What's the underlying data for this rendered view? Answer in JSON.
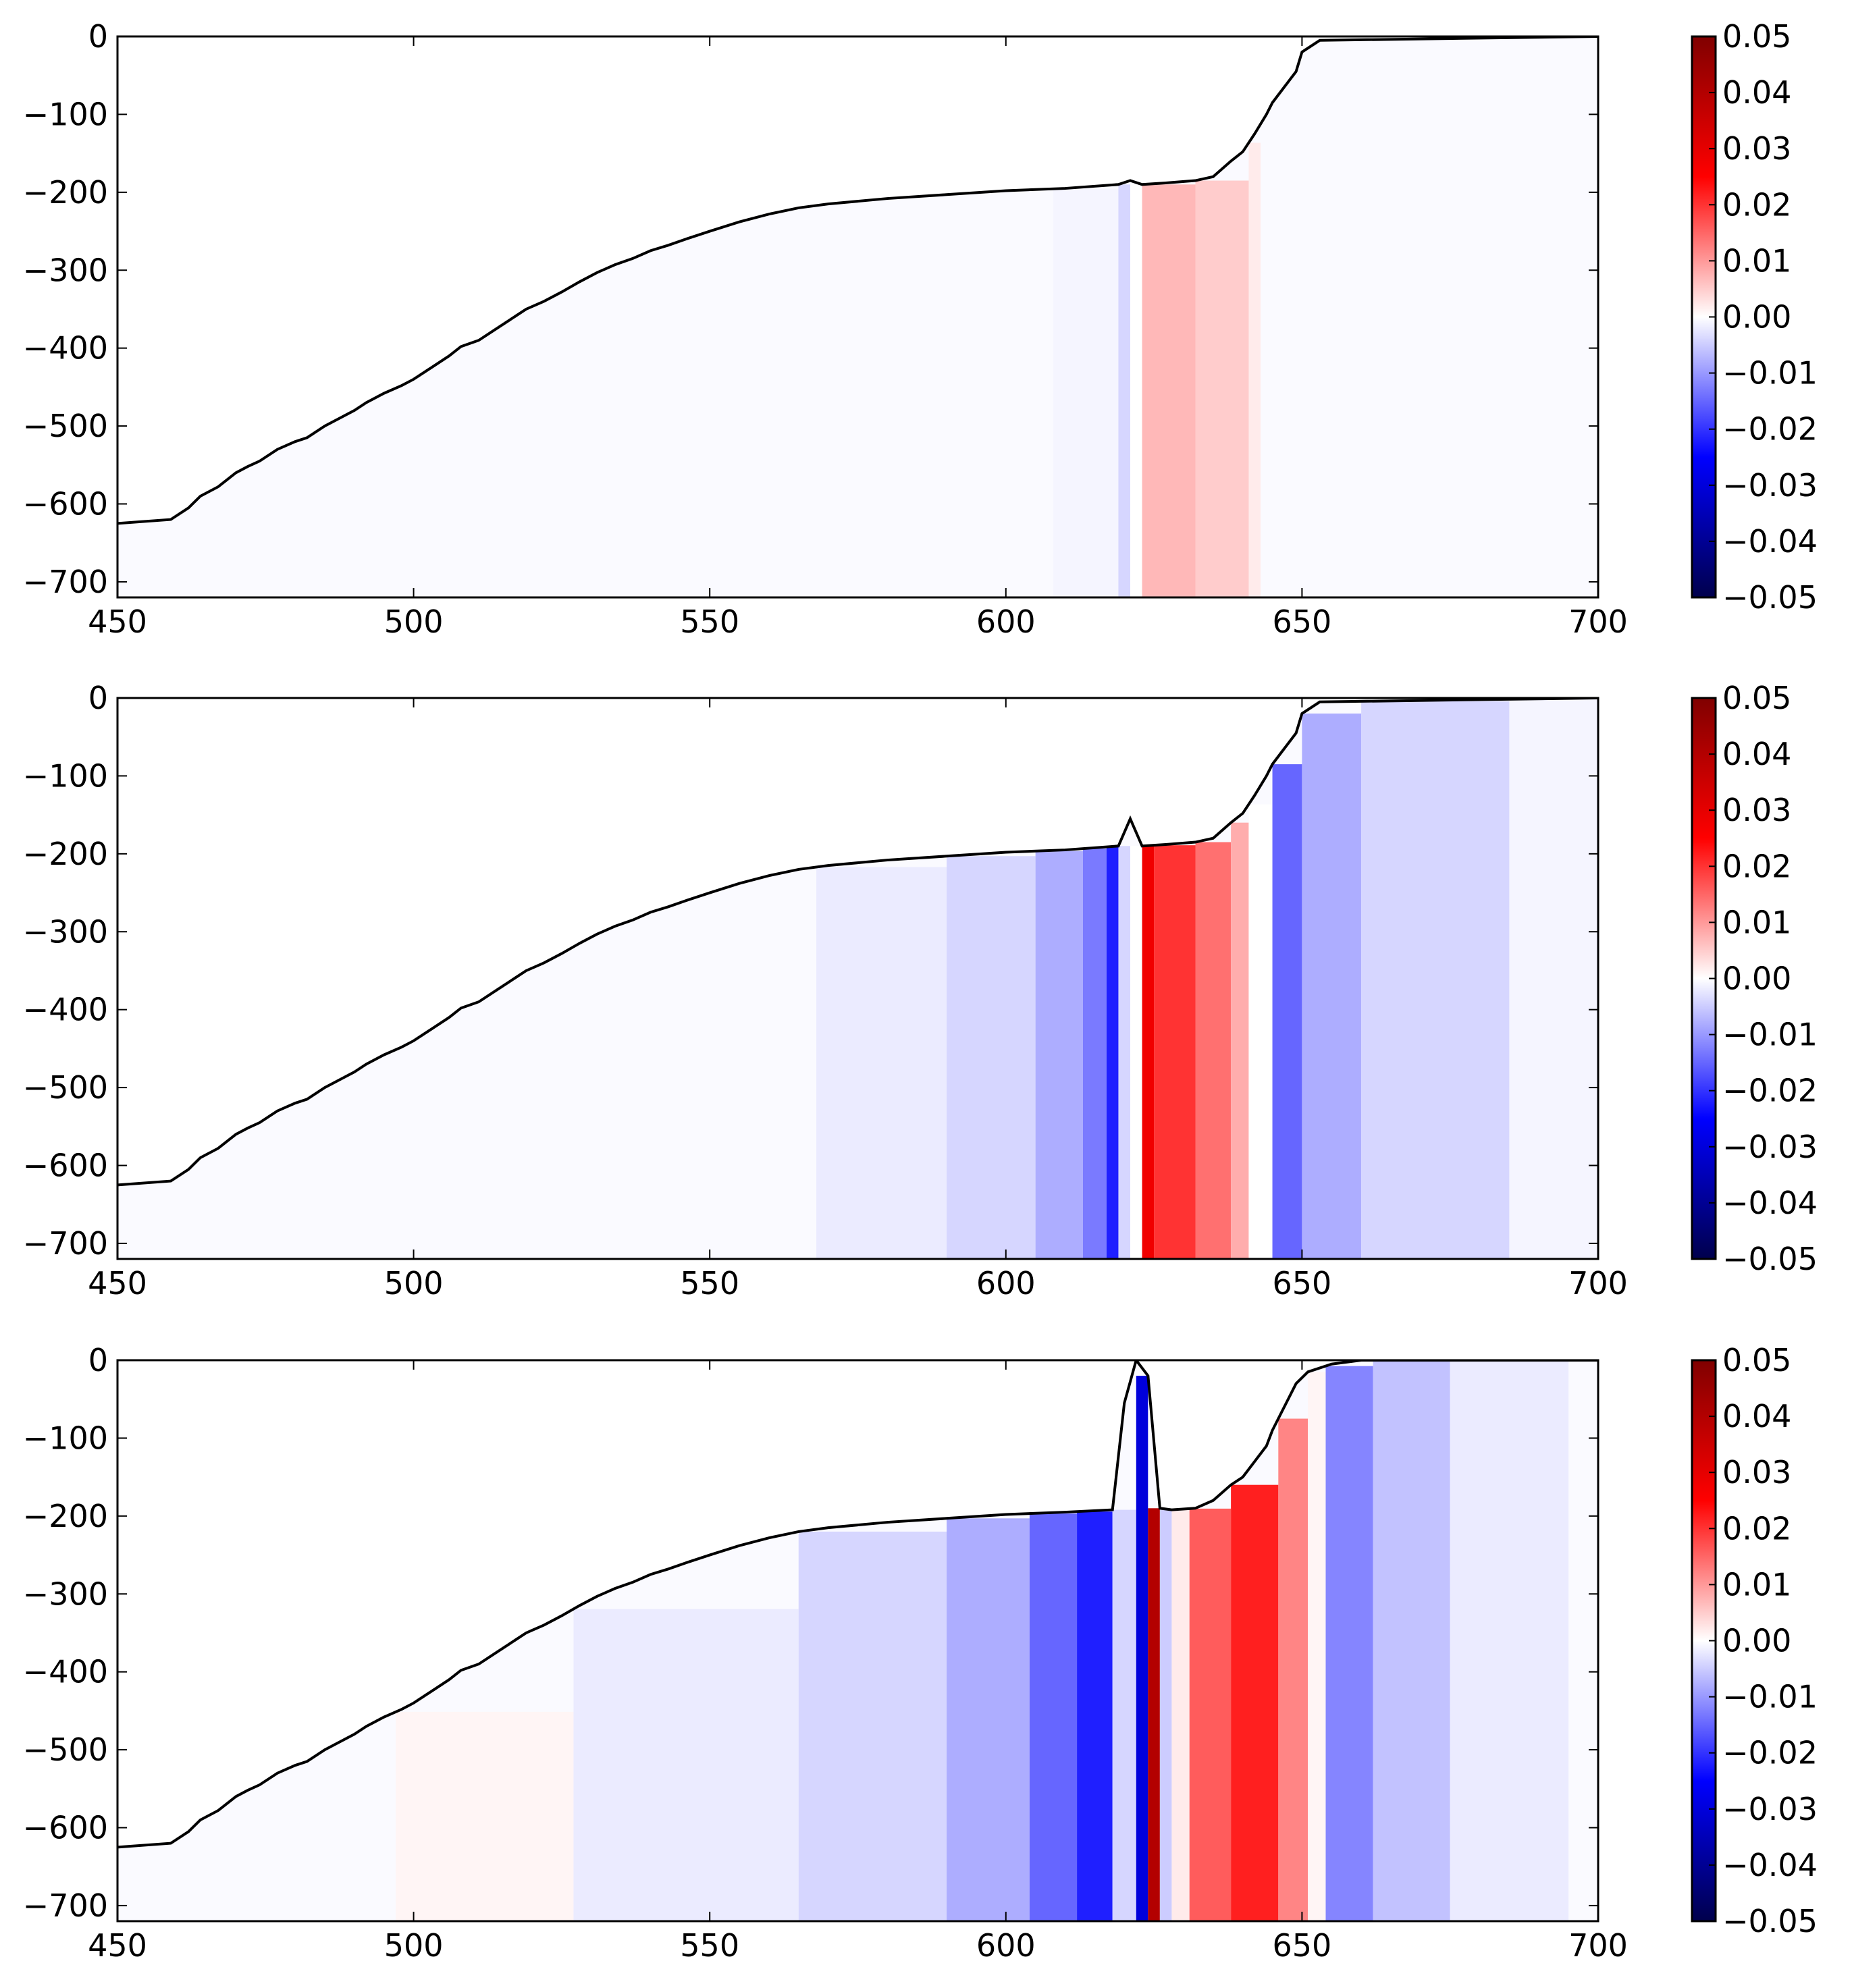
{
  "colormap": {
    "name": "seismic",
    "stops": [
      "#00004c",
      "#0000ff",
      "#ffffff",
      "#ff0000",
      "#800000"
    ]
  },
  "chart_data": [
    {
      "type": "heatmap",
      "xlim": [
        450,
        700
      ],
      "ylim": [
        -720,
        0
      ],
      "xticks": [
        450,
        500,
        550,
        600,
        650,
        700
      ],
      "yticks": [
        0,
        -100,
        -200,
        -300,
        -400,
        -500,
        -600,
        -700
      ],
      "xtick_labels": [
        "450",
        "500",
        "550",
        "600",
        "650",
        "700"
      ],
      "ytick_labels": [
        "0",
        "−100",
        "−200",
        "−300",
        "−400",
        "−500",
        "−600",
        "−700"
      ],
      "colorbar": {
        "range": [
          -0.05,
          0.05
        ],
        "ticks": [
          0.05,
          0.04,
          0.03,
          0.02,
          0.01,
          0.0,
          -0.01,
          -0.02,
          -0.03,
          -0.04,
          -0.05
        ],
        "tick_labels": [
          "0.05",
          "0.04",
          "0.03",
          "0.02",
          "0.01",
          "0.00",
          "−0.01",
          "−0.02",
          "−0.03",
          "−0.04",
          "−0.05"
        ]
      },
      "bathymetry": {
        "x": [
          450,
          459,
          462,
          464,
          467,
          470,
          472,
          474,
          477,
          480,
          482,
          485,
          488,
          490,
          492,
          495,
          498,
          500,
          503,
          506,
          508,
          511,
          514,
          516,
          519,
          522,
          525,
          528,
          531,
          534,
          537,
          540,
          543,
          546,
          550,
          555,
          560,
          565,
          570,
          580,
          590,
          600,
          610,
          619,
          621,
          623,
          627,
          632,
          635,
          638,
          640,
          642,
          644,
          645,
          647,
          649,
          650,
          653,
          700
        ],
        "y": [
          -625,
          -620,
          -605,
          -590,
          -578,
          -560,
          -552,
          -545,
          -530,
          -520,
          -515,
          -500,
          -488,
          -480,
          -470,
          -458,
          -448,
          -440,
          -425,
          -410,
          -398,
          -390,
          -375,
          -365,
          -350,
          -340,
          -328,
          -315,
          -303,
          -293,
          -285,
          -275,
          -268,
          -260,
          -250,
          -238,
          -228,
          -220,
          -215,
          -208,
          -203,
          -198,
          -195,
          -190,
          -185,
          -190,
          -188,
          -185,
          -180,
          -160,
          -148,
          -125,
          -100,
          -85,
          -65,
          -45,
          -20,
          -5,
          0
        ]
      },
      "field": [
        {
          "x0": 608,
          "x1": 619,
          "v": -0.001
        },
        {
          "x0": 619,
          "x1": 621,
          "v": -0.004
        },
        {
          "x0": 621,
          "x1": 623,
          "v": 0.0
        },
        {
          "x0": 623,
          "x1": 632,
          "v": 0.007
        },
        {
          "x0": 632,
          "x1": 641,
          "v": 0.005
        },
        {
          "x0": 641,
          "x1": 643,
          "v": 0.002
        }
      ]
    },
    {
      "type": "heatmap",
      "xlim": [
        450,
        700
      ],
      "ylim": [
        -720,
        0
      ],
      "xticks": [
        450,
        500,
        550,
        600,
        650,
        700
      ],
      "yticks": [
        0,
        -100,
        -200,
        -300,
        -400,
        -500,
        -600,
        -700
      ],
      "xtick_labels": [
        "450",
        "500",
        "550",
        "600",
        "650",
        "700"
      ],
      "ytick_labels": [
        "0",
        "−100",
        "−200",
        "−300",
        "−400",
        "−500",
        "−600",
        "−700"
      ],
      "colorbar": {
        "range": [
          -0.05,
          0.05
        ],
        "ticks": [
          0.05,
          0.04,
          0.03,
          0.02,
          0.01,
          0.0,
          -0.01,
          -0.02,
          -0.03,
          -0.04,
          -0.05
        ],
        "tick_labels": [
          "0.05",
          "0.04",
          "0.03",
          "0.02",
          "0.01",
          "0.00",
          "−0.01",
          "−0.02",
          "−0.03",
          "−0.04",
          "−0.05"
        ]
      },
      "bathymetry": {
        "x": [
          450,
          459,
          462,
          464,
          467,
          470,
          472,
          474,
          477,
          480,
          482,
          485,
          488,
          490,
          492,
          495,
          498,
          500,
          503,
          506,
          508,
          511,
          514,
          516,
          519,
          522,
          525,
          528,
          531,
          534,
          537,
          540,
          543,
          546,
          550,
          555,
          560,
          565,
          570,
          580,
          590,
          600,
          610,
          619,
          621,
          623,
          627,
          632,
          635,
          638,
          640,
          642,
          644,
          645,
          647,
          649,
          650,
          653,
          700
        ],
        "y": [
          -625,
          -620,
          -605,
          -590,
          -578,
          -560,
          -552,
          -545,
          -530,
          -520,
          -515,
          -500,
          -488,
          -480,
          -470,
          -458,
          -448,
          -440,
          -425,
          -410,
          -398,
          -390,
          -375,
          -365,
          -350,
          -340,
          -328,
          -315,
          -303,
          -293,
          -285,
          -275,
          -268,
          -260,
          -250,
          -238,
          -228,
          -220,
          -215,
          -208,
          -203,
          -198,
          -195,
          -190,
          -155,
          -190,
          -188,
          -185,
          -180,
          -160,
          -148,
          -125,
          -100,
          -85,
          -65,
          -45,
          -20,
          -5,
          0
        ]
      },
      "field": [
        {
          "x0": 568,
          "x1": 590,
          "v": -0.002
        },
        {
          "x0": 590,
          "x1": 605,
          "v": -0.004
        },
        {
          "x0": 605,
          "x1": 613,
          "v": -0.008
        },
        {
          "x0": 613,
          "x1": 617,
          "v": -0.013
        },
        {
          "x0": 617,
          "x1": 619,
          "v": -0.022
        },
        {
          "x0": 619,
          "x1": 621,
          "v": -0.004
        },
        {
          "x0": 621,
          "x1": 623,
          "v": 0.0
        },
        {
          "x0": 623,
          "x1": 625,
          "v": 0.028
        },
        {
          "x0": 625,
          "x1": 632,
          "v": 0.02
        },
        {
          "x0": 632,
          "x1": 638,
          "v": 0.014
        },
        {
          "x0": 638,
          "x1": 641,
          "v": 0.008
        },
        {
          "x0": 641,
          "x1": 645,
          "v": 0.0
        },
        {
          "x0": 645,
          "x1": 650,
          "v": -0.015
        },
        {
          "x0": 650,
          "x1": 660,
          "v": -0.008
        },
        {
          "x0": 660,
          "x1": 685,
          "v": -0.004
        },
        {
          "x0": 685,
          "x1": 700,
          "v": -0.001
        }
      ]
    },
    {
      "type": "heatmap",
      "xlim": [
        450,
        700
      ],
      "ylim": [
        -720,
        0
      ],
      "xticks": [
        450,
        500,
        550,
        600,
        650,
        700
      ],
      "yticks": [
        0,
        -100,
        -200,
        -300,
        -400,
        -500,
        -600,
        -700
      ],
      "xtick_labels": [
        "450",
        "500",
        "550",
        "600",
        "650",
        "700"
      ],
      "ytick_labels": [
        "0",
        "−100",
        "−200",
        "−300",
        "−400",
        "−500",
        "−600",
        "−700"
      ],
      "colorbar": {
        "range": [
          -0.05,
          0.05
        ],
        "ticks": [
          0.05,
          0.04,
          0.03,
          0.02,
          0.01,
          0.0,
          -0.01,
          -0.02,
          -0.03,
          -0.04,
          -0.05
        ],
        "tick_labels": [
          "0.05",
          "0.04",
          "0.03",
          "0.02",
          "0.01",
          "0.00",
          "−0.01",
          "−0.02",
          "−0.03",
          "−0.04",
          "−0.05"
        ]
      },
      "bathymetry": {
        "x": [
          450,
          459,
          462,
          464,
          467,
          470,
          472,
          474,
          477,
          480,
          482,
          485,
          488,
          490,
          492,
          495,
          498,
          500,
          503,
          506,
          508,
          511,
          514,
          516,
          519,
          522,
          525,
          528,
          531,
          534,
          537,
          540,
          543,
          546,
          550,
          555,
          560,
          565,
          570,
          580,
          590,
          600,
          610,
          618,
          620,
          622,
          624,
          626,
          628,
          632,
          635,
          638,
          640,
          642,
          644,
          645,
          647,
          649,
          651,
          655,
          660,
          700
        ],
        "y": [
          -625,
          -620,
          -605,
          -590,
          -578,
          -560,
          -552,
          -545,
          -530,
          -520,
          -515,
          -500,
          -488,
          -480,
          -470,
          -458,
          -448,
          -440,
          -425,
          -410,
          -398,
          -390,
          -375,
          -365,
          -350,
          -340,
          -328,
          -315,
          -303,
          -293,
          -285,
          -275,
          -268,
          -260,
          -250,
          -238,
          -228,
          -220,
          -215,
          -208,
          -203,
          -198,
          -195,
          -192,
          -55,
          0,
          -20,
          -190,
          -192,
          -190,
          -180,
          -160,
          -150,
          -130,
          -110,
          -90,
          -60,
          -30,
          -15,
          -5,
          0,
          0
        ]
      },
      "field": [
        {
          "x0": 497,
          "x1": 527,
          "v": 0.001
        },
        {
          "x0": 527,
          "x1": 565,
          "v": -0.002
        },
        {
          "x0": 565,
          "x1": 590,
          "v": -0.004
        },
        {
          "x0": 590,
          "x1": 604,
          "v": -0.008
        },
        {
          "x0": 604,
          "x1": 612,
          "v": -0.015
        },
        {
          "x0": 612,
          "x1": 618,
          "v": -0.022
        },
        {
          "x0": 618,
          "x1": 622,
          "v": -0.004
        },
        {
          "x0": 622,
          "x1": 624,
          "v": -0.03
        },
        {
          "x0": 624,
          "x1": 626,
          "v": 0.04
        },
        {
          "x0": 626,
          "x1": 628,
          "v": -0.005
        },
        {
          "x0": 628,
          "x1": 631,
          "v": 0.002
        },
        {
          "x0": 631,
          "x1": 638,
          "v": 0.016
        },
        {
          "x0": 638,
          "x1": 646,
          "v": 0.022
        },
        {
          "x0": 646,
          "x1": 651,
          "v": 0.012
        },
        {
          "x0": 651,
          "x1": 654,
          "v": 0.001
        },
        {
          "x0": 654,
          "x1": 662,
          "v": -0.012
        },
        {
          "x0": 662,
          "x1": 675,
          "v": -0.006
        },
        {
          "x0": 675,
          "x1": 695,
          "v": -0.002
        }
      ]
    }
  ]
}
